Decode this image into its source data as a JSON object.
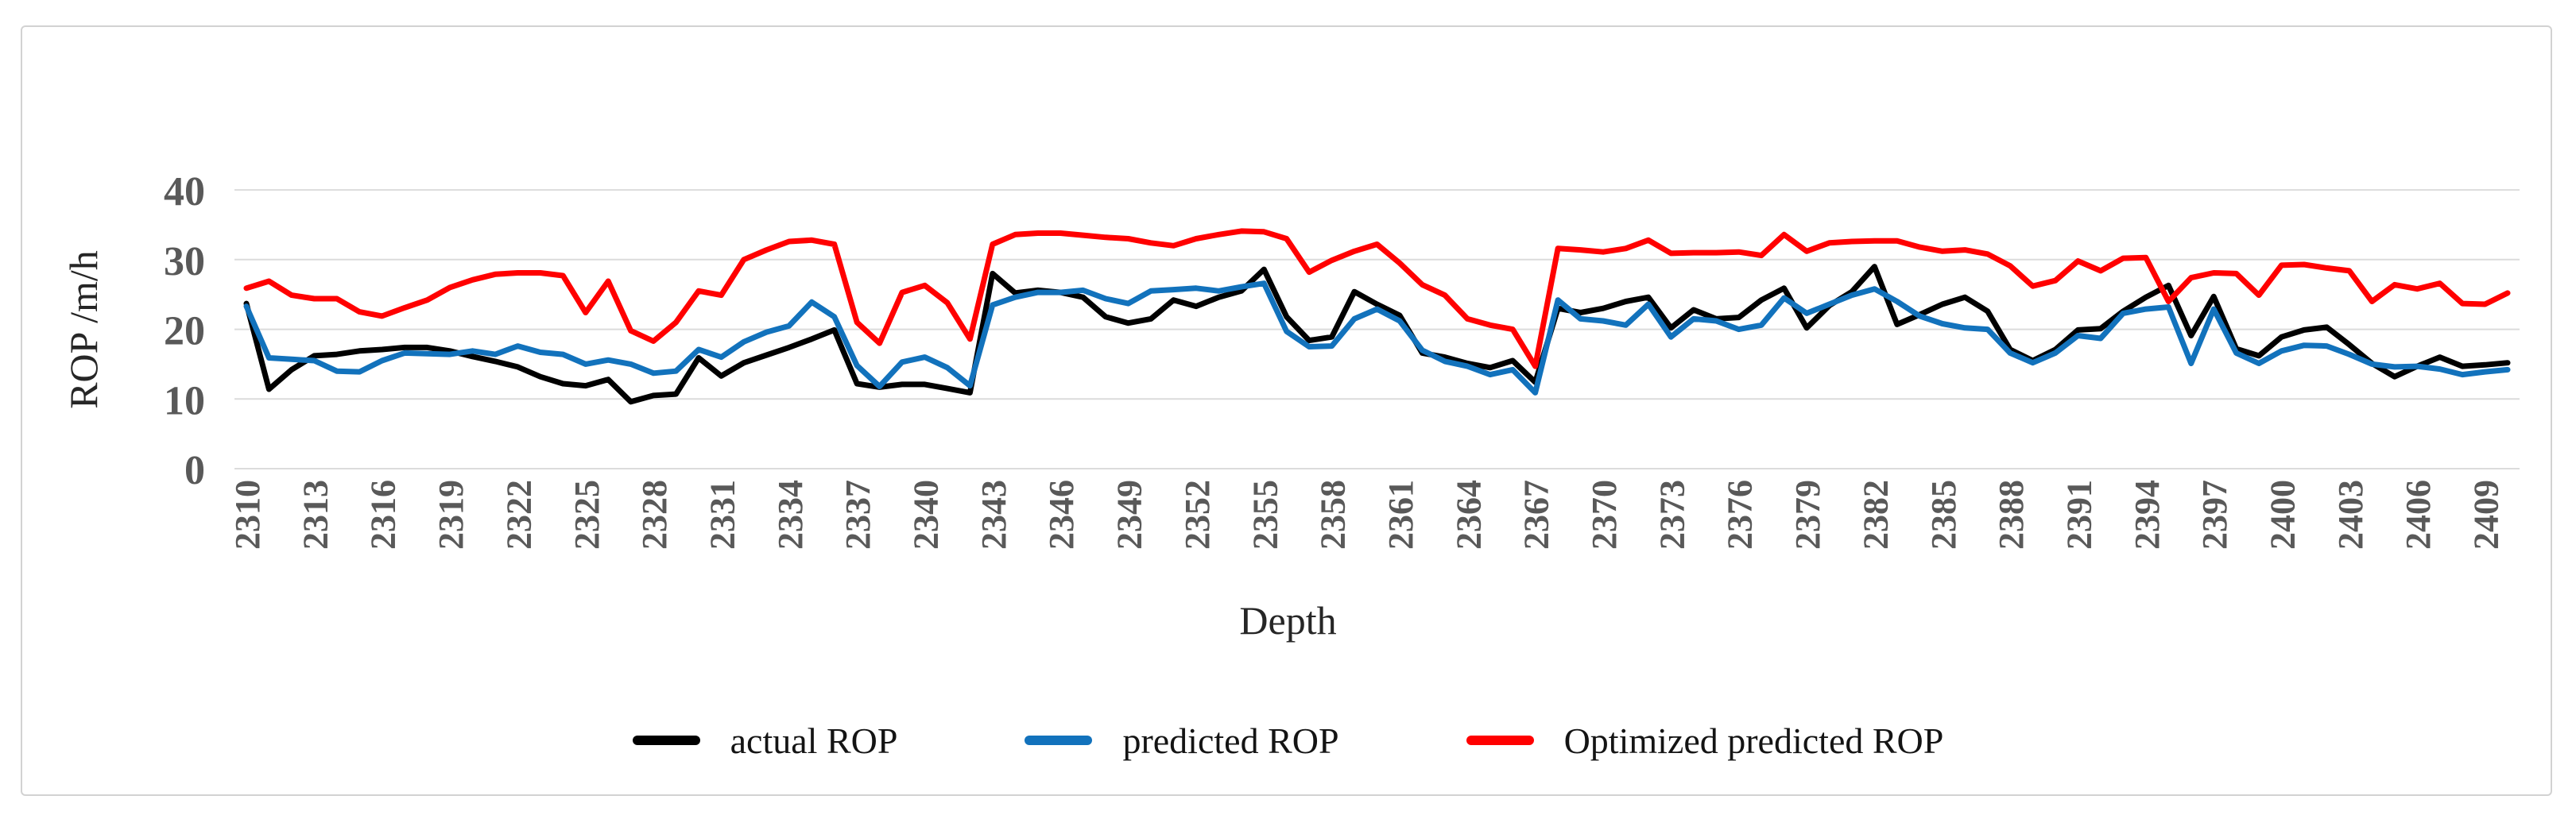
{
  "chart_data": {
    "type": "line",
    "title": "",
    "xlabel": "Depth",
    "ylabel": "ROP /m/h",
    "ylim": [
      0,
      40
    ],
    "yticks": [
      0,
      10,
      20,
      30,
      40
    ],
    "grid": true,
    "legend_position": "bottom",
    "x": [
      2310,
      2311,
      2312,
      2313,
      2314,
      2315,
      2316,
      2317,
      2318,
      2319,
      2320,
      2321,
      2322,
      2323,
      2324,
      2325,
      2326,
      2327,
      2328,
      2329,
      2330,
      2331,
      2332,
      2333,
      2334,
      2335,
      2336,
      2337,
      2338,
      2339,
      2340,
      2341,
      2342,
      2343,
      2344,
      2345,
      2346,
      2347,
      2348,
      2349,
      2350,
      2351,
      2352,
      2353,
      2354,
      2355,
      2356,
      2357,
      2358,
      2359,
      2360,
      2361,
      2362,
      2363,
      2364,
      2365,
      2366,
      2367,
      2368,
      2369,
      2370,
      2371,
      2372,
      2373,
      2374,
      2375,
      2376,
      2377,
      2378,
      2379,
      2380,
      2381,
      2382,
      2383,
      2384,
      2385,
      2386,
      2387,
      2388,
      2389,
      2390,
      2391,
      2392,
      2393,
      2394,
      2395,
      2396,
      2397,
      2398,
      2399,
      2400,
      2401,
      2402,
      2403,
      2404,
      2405,
      2406,
      2407,
      2408,
      2409,
      2410
    ],
    "x_tick_labels": [
      2310,
      2313,
      2316,
      2319,
      2322,
      2325,
      2328,
      2331,
      2334,
      2337,
      2340,
      2343,
      2346,
      2349,
      2352,
      2355,
      2358,
      2361,
      2364,
      2367,
      2370,
      2373,
      2376,
      2379,
      2382,
      2385,
      2388,
      2391,
      2394,
      2397,
      2400,
      2403,
      2406,
      2409
    ],
    "series": [
      {
        "name": "actual ROP",
        "color": "#000000",
        "values": [
          23.7,
          11.4,
          14.2,
          16.2,
          16.4,
          16.9,
          17.1,
          17.4,
          17.4,
          16.9,
          16.1,
          15.4,
          14.6,
          13.2,
          12.2,
          11.9,
          12.8,
          9.6,
          10.5,
          10.7,
          15.9,
          13.3,
          15.2,
          16.3,
          17.4,
          18.6,
          19.9,
          12.2,
          11.7,
          12.1,
          12.1,
          11.5,
          10.9,
          28.0,
          25.2,
          25.6,
          25.3,
          24.6,
          21.8,
          20.9,
          21.5,
          24.2,
          23.3,
          24.6,
          25.5,
          28.6,
          21.8,
          18.4,
          18.9,
          25.4,
          23.6,
          22.0,
          16.6,
          16.0,
          15.1,
          14.5,
          15.5,
          12.4,
          23.0,
          22.4,
          23.0,
          24.0,
          24.6,
          20.2,
          22.8,
          21.5,
          21.7,
          24.2,
          25.9,
          20.2,
          23.4,
          25.4,
          29.0,
          20.7,
          22.1,
          23.6,
          24.6,
          22.6,
          17.1,
          15.5,
          17.1,
          19.9,
          20.1,
          22.6,
          24.6,
          26.3,
          19.1,
          24.7,
          17.2,
          16.2,
          18.9,
          19.9,
          20.3,
          17.8,
          15.1,
          13.2,
          14.7,
          16.0,
          14.7,
          14.9,
          15.2
        ]
      },
      {
        "name": "predicted ROP",
        "color": "#1272BC",
        "values": [
          23.3,
          15.9,
          15.7,
          15.5,
          14.0,
          13.9,
          15.5,
          16.6,
          16.5,
          16.4,
          16.9,
          16.4,
          17.6,
          16.7,
          16.4,
          15.0,
          15.6,
          15.0,
          13.7,
          14.0,
          17.1,
          16.0,
          18.2,
          19.6,
          20.5,
          23.9,
          21.8,
          14.8,
          11.8,
          15.3,
          16.0,
          14.5,
          11.9,
          23.5,
          24.6,
          25.3,
          25.3,
          25.6,
          24.4,
          23.7,
          25.5,
          25.7,
          25.9,
          25.5,
          26.1,
          26.6,
          19.7,
          17.5,
          17.6,
          21.5,
          22.9,
          21.2,
          17.0,
          15.4,
          14.7,
          13.5,
          14.2,
          10.9,
          24.2,
          21.5,
          21.2,
          20.6,
          23.6,
          18.9,
          21.5,
          21.2,
          20.0,
          20.6,
          24.5,
          22.3,
          23.6,
          24.9,
          25.8,
          24.0,
          21.9,
          20.8,
          20.2,
          20.0,
          16.6,
          15.2,
          16.6,
          19.1,
          18.7,
          22.3,
          22.9,
          23.2,
          15.1,
          22.9,
          16.6,
          15.1,
          16.9,
          17.7,
          17.6,
          16.4,
          15.0,
          14.6,
          14.7,
          14.3,
          13.5,
          13.9,
          14.2
        ]
      },
      {
        "name": "Optimized predicted ROP",
        "color": "#FF0000",
        "values": [
          25.9,
          26.9,
          24.9,
          24.4,
          24.4,
          22.5,
          21.9,
          23.1,
          24.2,
          26.0,
          27.1,
          27.9,
          28.1,
          28.1,
          27.7,
          22.4,
          26.9,
          19.8,
          18.3,
          21.0,
          25.5,
          24.9,
          30.0,
          31.4,
          32.6,
          32.8,
          32.2,
          21.0,
          18.0,
          25.3,
          26.3,
          23.8,
          18.6,
          32.2,
          33.6,
          33.8,
          33.8,
          33.5,
          33.2,
          33.0,
          32.4,
          32.0,
          33.0,
          33.6,
          34.1,
          34.0,
          33.0,
          28.2,
          29.9,
          31.2,
          32.2,
          29.5,
          26.4,
          24.9,
          21.5,
          20.6,
          20.0,
          14.7,
          31.6,
          31.4,
          31.1,
          31.6,
          32.8,
          30.9,
          31.0,
          31.0,
          31.1,
          30.6,
          33.6,
          31.2,
          32.4,
          32.6,
          32.7,
          32.7,
          31.8,
          31.2,
          31.4,
          30.8,
          29.1,
          26.2,
          27.0,
          29.8,
          28.4,
          30.2,
          30.3,
          24.0,
          27.4,
          28.1,
          28.0,
          24.9,
          29.2,
          29.3,
          28.8,
          28.4,
          24.0,
          26.4,
          25.8,
          26.6,
          23.7,
          23.6,
          25.2
        ]
      }
    ]
  }
}
